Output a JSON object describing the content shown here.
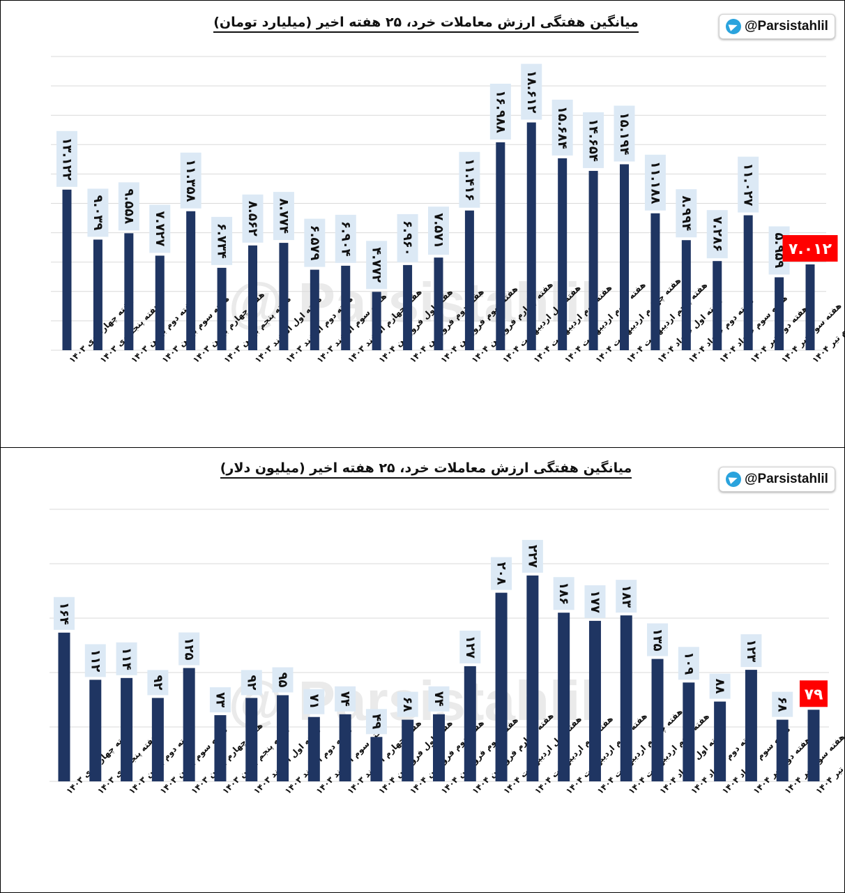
{
  "brand_handle": "@Parsistahlil",
  "watermark": "@ Parsistahlil",
  "colors": {
    "bar": "#1f3562",
    "highlight": "#ff0000",
    "label_bg": "#dce9f5",
    "grid": "#d9d9d9"
  },
  "categories": [
    "هفته چهارم دی ۱۴۰۳",
    "هفته پنجم دی ۱۴۰۳",
    "هفته دوم بهمن ۱۴۰۳",
    "هفته سوم بهمن ۱۴۰۳",
    "هفته چهارم بهمن ۱۴۰۳",
    "هفته پنجم بهمن ۱۴۰۳",
    "هفته اول اسفند ۱۴۰۳",
    "هفته دوم اسفند ۱۴۰۳",
    "هفته سوم اسفند ۱۴۰۳",
    "هفته چهارم اسفند ۱۴۰۳",
    "هفته اول فروردین ۱۴۰۴",
    "هفته دوم فروردین ۱۴۰۴",
    "هفته سوم فروردین ۱۴۰۴",
    "هفته چهارم فروردین ۱۴۰۴",
    "هفته اول اردیبهشت ۱۴۰۴",
    "هفته دوم اردیبهشت ۱۴۰۴",
    "هفته سوم اردیبهشت ۱۴۰۴",
    "هفته چهارم اردیبهشت ۱۴۰۴",
    "هفته پنجم اردیبهشت ۱۴۰۴",
    "هفته اول خرداد ۱۴۰۴",
    "هفته دوم خرداد ۱۴۰۴",
    "هفته سوم خرداد ۱۴۰۴",
    "هفته دوم تیر ۱۴۰۴",
    "هفته سوم تیر ۱۴۰۴",
    "هفته چهارم تیر ۱۴۰۴"
  ],
  "chart_data": [
    {
      "type": "bar",
      "title": "میانگین هفتگی ارزش معاملات خرد، ۲۵ هفته اخیر (میلیارد تومان)",
      "ylim": [
        0,
        24
      ],
      "grid": true,
      "highlight_last": true,
      "values": [
        13.122,
        9.039,
        9.558,
        7.727,
        11.358,
        6.734,
        8.562,
        8.774,
        6.579,
        6.904,
        4.772,
        6.96,
        7.571,
        11.416,
        16.988,
        18.612,
        15.684,
        14.654,
        15.194,
        11.188,
        8.994,
        7.286,
        11.027,
        5.959,
        7.012
      ],
      "labels": [
        "۱۳.۱۲۲",
        "۹.۰۳۹",
        "۹.۵۵۸",
        "۷.۷۲۷",
        "۱۱.۳۵۸",
        "۶.۷۳۴",
        "۸.۵۶۲",
        "۸.۷۷۴",
        "۶.۵۷۹",
        "۶.۹۰۴",
        "۴.۷۷۲",
        "۶.۹۶۰",
        "۷.۵۷۱",
        "۱۱.۴۱۶",
        "۱۶.۹۸۸",
        "۱۸.۶۱۲",
        "۱۵.۶۸۴",
        "۱۴.۶۵۴",
        "۱۵.۱۹۴",
        "۱۱.۱۸۸",
        "۸.۹۹۴",
        "۷.۲۸۶",
        "۱۱.۰۲۷",
        "۵.۹۵۹",
        "۷.۰۱۲"
      ]
    },
    {
      "type": "bar",
      "title": "میانگین هفتگی ارزش معاملات خرد، ۲۵ هفته اخیر (میلیون دلار)",
      "ylim": [
        0,
        300
      ],
      "grid": true,
      "highlight_last": true,
      "values": [
        164,
        112,
        114,
        92,
        125,
        73,
        92,
        95,
        71,
        74,
        49,
        68,
        74,
        127,
        208,
        227,
        186,
        177,
        183,
        135,
        109,
        88,
        123,
        68,
        79
      ],
      "labels": [
        "۱۶۴",
        "۱۱۲",
        "۱۱۴",
        "۹۲",
        "۱۲۵",
        "۷۳",
        "۹۲",
        "۹۵",
        "۷۱",
        "۷۴",
        "۴۹",
        "۶۸",
        "۷۴",
        "۱۲۷",
        "۲۰۸",
        "۲۲۷",
        "۱۸۶",
        "۱۷۷",
        "۱۸۳",
        "۱۳۵",
        "۱۰۹",
        "۸۸",
        "۱۲۳",
        "۶۸",
        "۷۹"
      ]
    }
  ]
}
